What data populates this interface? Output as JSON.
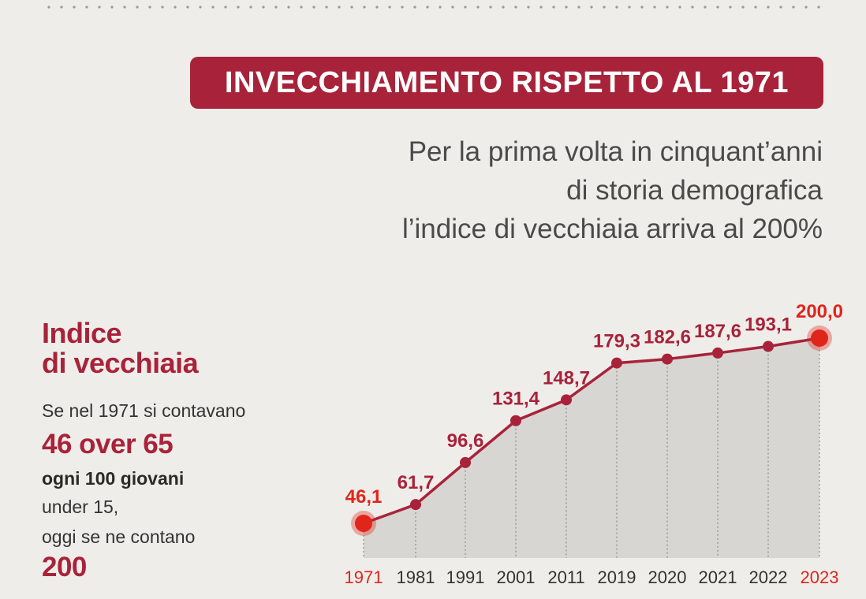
{
  "header": {
    "banner_title": "INVECCHIAMENTO RISPETTO AL 1971",
    "subtitle_lines": [
      "Per la prima volta in cinquant’anni",
      "di storia demografica",
      "l’indice di vecchiaia arriva al 200%"
    ]
  },
  "sidebar": {
    "title_line1": "Indice",
    "title_line2": "di vecchiaia",
    "line1": "Se nel 1971 si contavano",
    "big1": "46 over 65",
    "line2": "ogni 100 giovani",
    "line3": "under 15,",
    "line4": "oggi se ne contano",
    "big2": "200"
  },
  "colors": {
    "accent": "#a8233a",
    "highlight": "#e0251b",
    "line": "#a8233a",
    "area": "#d3d1ce",
    "text": "#4a4a4a"
  },
  "chart_data": {
    "type": "line",
    "categories": [
      "1971",
      "1981",
      "1991",
      "2001",
      "2011",
      "2019",
      "2020",
      "2021",
      "2022",
      "2023"
    ],
    "values": [
      46.1,
      61.7,
      96.6,
      131.4,
      148.7,
      179.3,
      182.6,
      187.6,
      193.1,
      200.0
    ],
    "value_labels": [
      "46,1",
      "61,7",
      "96,6",
      "131,4",
      "148,7",
      "179,3",
      "182,6",
      "187,6",
      "193,1",
      "200,0"
    ],
    "highlighted_categories": [
      "1971",
      "2023"
    ],
    "area_fill": true,
    "grid": false,
    "ylim": [
      0,
      220
    ]
  }
}
